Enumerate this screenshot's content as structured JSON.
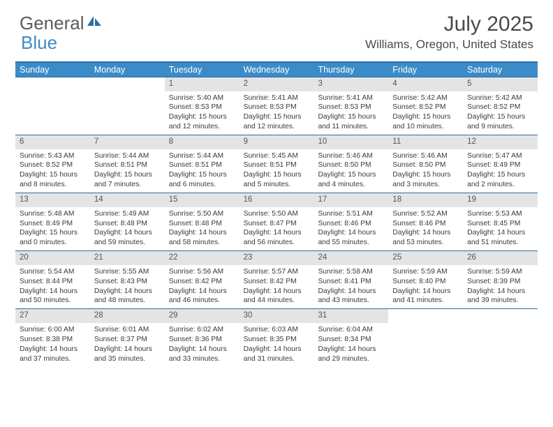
{
  "logo": {
    "text1": "General",
    "text2": "Blue"
  },
  "title": "July 2025",
  "location": "Williams, Oregon, United States",
  "colors": {
    "header_bar": "#3b8bc8",
    "border": "#2e6ca4",
    "daynum_bg": "#e4e4e4",
    "text": "#3a3a3a",
    "logo_gray": "#5a5a5a",
    "title_gray": "#4a4a4a"
  },
  "weekdays": [
    "Sunday",
    "Monday",
    "Tuesday",
    "Wednesday",
    "Thursday",
    "Friday",
    "Saturday"
  ],
  "weeks": [
    [
      {
        "empty": true
      },
      {
        "empty": true
      },
      {
        "n": "1",
        "sr": "Sunrise: 5:40 AM",
        "ss": "Sunset: 8:53 PM",
        "d1": "Daylight: 15 hours",
        "d2": "and 12 minutes."
      },
      {
        "n": "2",
        "sr": "Sunrise: 5:41 AM",
        "ss": "Sunset: 8:53 PM",
        "d1": "Daylight: 15 hours",
        "d2": "and 12 minutes."
      },
      {
        "n": "3",
        "sr": "Sunrise: 5:41 AM",
        "ss": "Sunset: 8:53 PM",
        "d1": "Daylight: 15 hours",
        "d2": "and 11 minutes."
      },
      {
        "n": "4",
        "sr": "Sunrise: 5:42 AM",
        "ss": "Sunset: 8:52 PM",
        "d1": "Daylight: 15 hours",
        "d2": "and 10 minutes."
      },
      {
        "n": "5",
        "sr": "Sunrise: 5:42 AM",
        "ss": "Sunset: 8:52 PM",
        "d1": "Daylight: 15 hours",
        "d2": "and 9 minutes."
      }
    ],
    [
      {
        "n": "6",
        "sr": "Sunrise: 5:43 AM",
        "ss": "Sunset: 8:52 PM",
        "d1": "Daylight: 15 hours",
        "d2": "and 8 minutes."
      },
      {
        "n": "7",
        "sr": "Sunrise: 5:44 AM",
        "ss": "Sunset: 8:51 PM",
        "d1": "Daylight: 15 hours",
        "d2": "and 7 minutes."
      },
      {
        "n": "8",
        "sr": "Sunrise: 5:44 AM",
        "ss": "Sunset: 8:51 PM",
        "d1": "Daylight: 15 hours",
        "d2": "and 6 minutes."
      },
      {
        "n": "9",
        "sr": "Sunrise: 5:45 AM",
        "ss": "Sunset: 8:51 PM",
        "d1": "Daylight: 15 hours",
        "d2": "and 5 minutes."
      },
      {
        "n": "10",
        "sr": "Sunrise: 5:46 AM",
        "ss": "Sunset: 8:50 PM",
        "d1": "Daylight: 15 hours",
        "d2": "and 4 minutes."
      },
      {
        "n": "11",
        "sr": "Sunrise: 5:46 AM",
        "ss": "Sunset: 8:50 PM",
        "d1": "Daylight: 15 hours",
        "d2": "and 3 minutes."
      },
      {
        "n": "12",
        "sr": "Sunrise: 5:47 AM",
        "ss": "Sunset: 8:49 PM",
        "d1": "Daylight: 15 hours",
        "d2": "and 2 minutes."
      }
    ],
    [
      {
        "n": "13",
        "sr": "Sunrise: 5:48 AM",
        "ss": "Sunset: 8:49 PM",
        "d1": "Daylight: 15 hours",
        "d2": "and 0 minutes."
      },
      {
        "n": "14",
        "sr": "Sunrise: 5:49 AM",
        "ss": "Sunset: 8:48 PM",
        "d1": "Daylight: 14 hours",
        "d2": "and 59 minutes."
      },
      {
        "n": "15",
        "sr": "Sunrise: 5:50 AM",
        "ss": "Sunset: 8:48 PM",
        "d1": "Daylight: 14 hours",
        "d2": "and 58 minutes."
      },
      {
        "n": "16",
        "sr": "Sunrise: 5:50 AM",
        "ss": "Sunset: 8:47 PM",
        "d1": "Daylight: 14 hours",
        "d2": "and 56 minutes."
      },
      {
        "n": "17",
        "sr": "Sunrise: 5:51 AM",
        "ss": "Sunset: 8:46 PM",
        "d1": "Daylight: 14 hours",
        "d2": "and 55 minutes."
      },
      {
        "n": "18",
        "sr": "Sunrise: 5:52 AM",
        "ss": "Sunset: 8:46 PM",
        "d1": "Daylight: 14 hours",
        "d2": "and 53 minutes."
      },
      {
        "n": "19",
        "sr": "Sunrise: 5:53 AM",
        "ss": "Sunset: 8:45 PM",
        "d1": "Daylight: 14 hours",
        "d2": "and 51 minutes."
      }
    ],
    [
      {
        "n": "20",
        "sr": "Sunrise: 5:54 AM",
        "ss": "Sunset: 8:44 PM",
        "d1": "Daylight: 14 hours",
        "d2": "and 50 minutes."
      },
      {
        "n": "21",
        "sr": "Sunrise: 5:55 AM",
        "ss": "Sunset: 8:43 PM",
        "d1": "Daylight: 14 hours",
        "d2": "and 48 minutes."
      },
      {
        "n": "22",
        "sr": "Sunrise: 5:56 AM",
        "ss": "Sunset: 8:42 PM",
        "d1": "Daylight: 14 hours",
        "d2": "and 46 minutes."
      },
      {
        "n": "23",
        "sr": "Sunrise: 5:57 AM",
        "ss": "Sunset: 8:42 PM",
        "d1": "Daylight: 14 hours",
        "d2": "and 44 minutes."
      },
      {
        "n": "24",
        "sr": "Sunrise: 5:58 AM",
        "ss": "Sunset: 8:41 PM",
        "d1": "Daylight: 14 hours",
        "d2": "and 43 minutes."
      },
      {
        "n": "25",
        "sr": "Sunrise: 5:59 AM",
        "ss": "Sunset: 8:40 PM",
        "d1": "Daylight: 14 hours",
        "d2": "and 41 minutes."
      },
      {
        "n": "26",
        "sr": "Sunrise: 5:59 AM",
        "ss": "Sunset: 8:39 PM",
        "d1": "Daylight: 14 hours",
        "d2": "and 39 minutes."
      }
    ],
    [
      {
        "n": "27",
        "sr": "Sunrise: 6:00 AM",
        "ss": "Sunset: 8:38 PM",
        "d1": "Daylight: 14 hours",
        "d2": "and 37 minutes."
      },
      {
        "n": "28",
        "sr": "Sunrise: 6:01 AM",
        "ss": "Sunset: 8:37 PM",
        "d1": "Daylight: 14 hours",
        "d2": "and 35 minutes."
      },
      {
        "n": "29",
        "sr": "Sunrise: 6:02 AM",
        "ss": "Sunset: 8:36 PM",
        "d1": "Daylight: 14 hours",
        "d2": "and 33 minutes."
      },
      {
        "n": "30",
        "sr": "Sunrise: 6:03 AM",
        "ss": "Sunset: 8:35 PM",
        "d1": "Daylight: 14 hours",
        "d2": "and 31 minutes."
      },
      {
        "n": "31",
        "sr": "Sunrise: 6:04 AM",
        "ss": "Sunset: 8:34 PM",
        "d1": "Daylight: 14 hours",
        "d2": "and 29 minutes."
      },
      {
        "empty": true
      },
      {
        "empty": true
      }
    ]
  ]
}
